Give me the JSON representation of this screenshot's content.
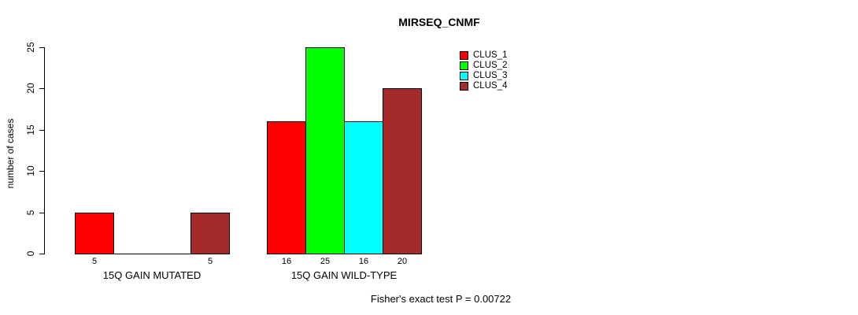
{
  "chart_data": {
    "type": "bar",
    "title": "MIRSEQ_CNMF",
    "ylabel": "number of cases",
    "xlabel": "",
    "ylim": [
      0,
      25
    ],
    "yticks": [
      0,
      5,
      10,
      15,
      20,
      25
    ],
    "grid": false,
    "legend_position": "top-right",
    "categories": [
      "15Q GAIN MUTATED",
      "15Q GAIN WILD-TYPE"
    ],
    "series": [
      {
        "name": "CLUS_1",
        "color": "#ff0000",
        "values": [
          5,
          16
        ]
      },
      {
        "name": "CLUS_2",
        "color": "#00ff00",
        "values": [
          0,
          25
        ]
      },
      {
        "name": "CLUS_3",
        "color": "#00ffff",
        "values": [
          0,
          16
        ]
      },
      {
        "name": "CLUS_4",
        "color": "#a52a2a",
        "values": [
          5,
          20
        ]
      }
    ],
    "bar_value_labels": [
      [
        "5",
        "",
        "",
        "5"
      ],
      [
        "16",
        "25",
        "16",
        "20"
      ]
    ],
    "annotation": "Fisher's exact test P = 0.00722"
  }
}
